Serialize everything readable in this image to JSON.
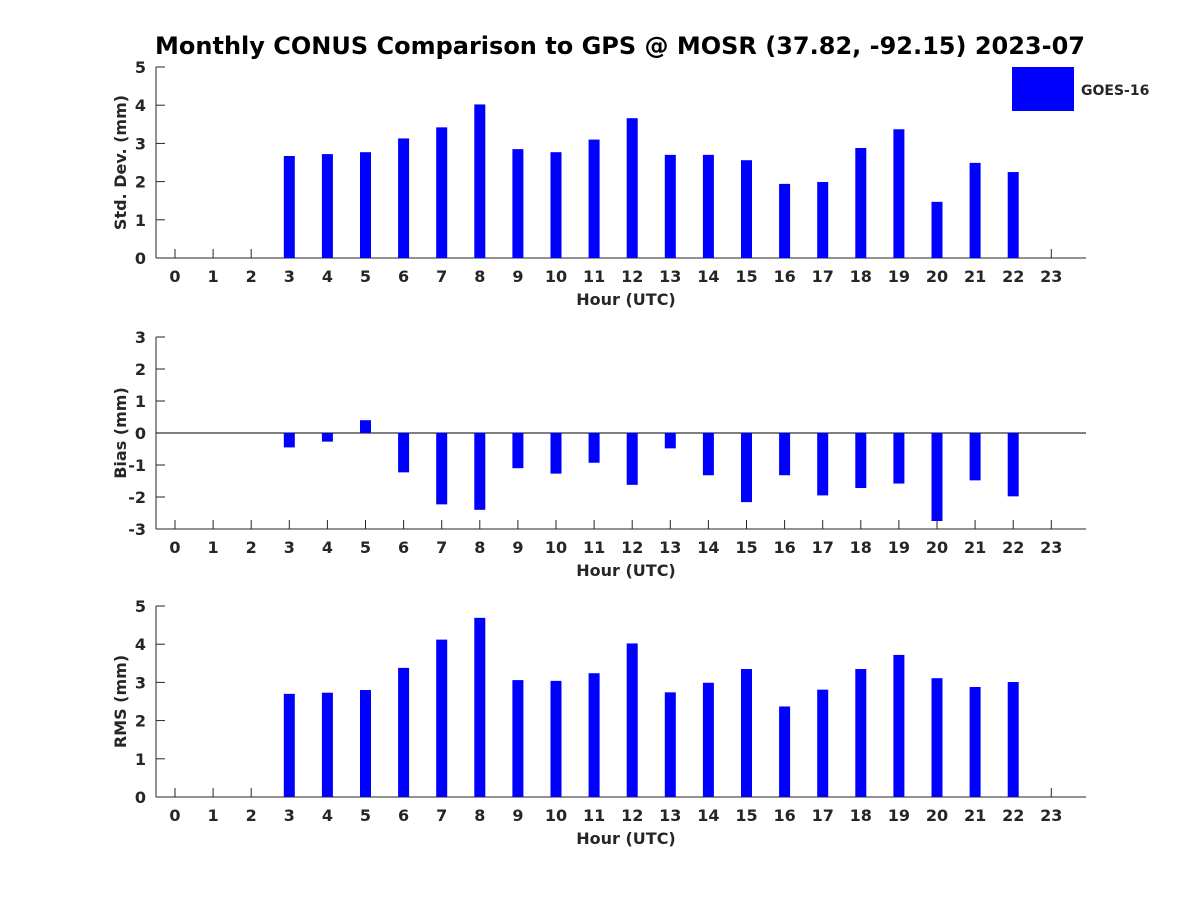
{
  "chart_data": {
    "type": "bar",
    "title": "Monthly CONUS Comparison to GPS @ MOSR (37.82, -92.15) 2023-07",
    "legend": {
      "label": "GOES-16",
      "color": "#0000ff",
      "placement": "top-right"
    },
    "bar_color": "#0000ff",
    "categories": [
      "0",
      "1",
      "2",
      "3",
      "4",
      "5",
      "6",
      "7",
      "8",
      "9",
      "10",
      "11",
      "12",
      "13",
      "14",
      "15",
      "16",
      "17",
      "18",
      "19",
      "20",
      "21",
      "22",
      "23"
    ],
    "panels": [
      {
        "key": "std",
        "ylabel": "Std. Dev. (mm)",
        "xlabel": "Hour (UTC)",
        "ylim": [
          0,
          5
        ],
        "yticks": [
          "0",
          "1",
          "2",
          "3",
          "4",
          "5"
        ],
        "values": [
          null,
          null,
          null,
          2.67,
          2.72,
          2.77,
          3.13,
          3.42,
          4.02,
          2.85,
          2.77,
          3.1,
          3.66,
          2.7,
          2.7,
          2.56,
          1.94,
          1.99,
          2.88,
          3.37,
          1.47,
          2.49,
          2.25,
          null
        ]
      },
      {
        "key": "bias",
        "ylabel": "Bias (mm)",
        "xlabel": "Hour (UTC)",
        "ylim": [
          -3,
          3
        ],
        "yticks": [
          "-3",
          "-2",
          "-1",
          "0",
          "1",
          "2",
          "3"
        ],
        "zero_line": true,
        "values": [
          null,
          null,
          null,
          -0.45,
          -0.27,
          0.4,
          -1.23,
          -2.23,
          -2.4,
          -1.1,
          -1.27,
          -0.93,
          -1.62,
          -0.48,
          -1.32,
          -2.16,
          -1.32,
          -1.95,
          -1.72,
          -1.58,
          -2.75,
          -1.48,
          -1.98,
          null
        ]
      },
      {
        "key": "rms",
        "ylabel": "RMS (mm)",
        "xlabel": "Hour (UTC)",
        "ylim": [
          0,
          5
        ],
        "yticks": [
          "0",
          "1",
          "2",
          "3",
          "4",
          "5"
        ],
        "values": [
          null,
          null,
          null,
          2.7,
          2.73,
          2.8,
          3.38,
          4.12,
          4.69,
          3.06,
          3.04,
          3.24,
          4.02,
          2.74,
          2.99,
          3.35,
          2.37,
          2.81,
          3.35,
          3.72,
          3.11,
          2.88,
          3.01,
          null
        ]
      }
    ]
  }
}
